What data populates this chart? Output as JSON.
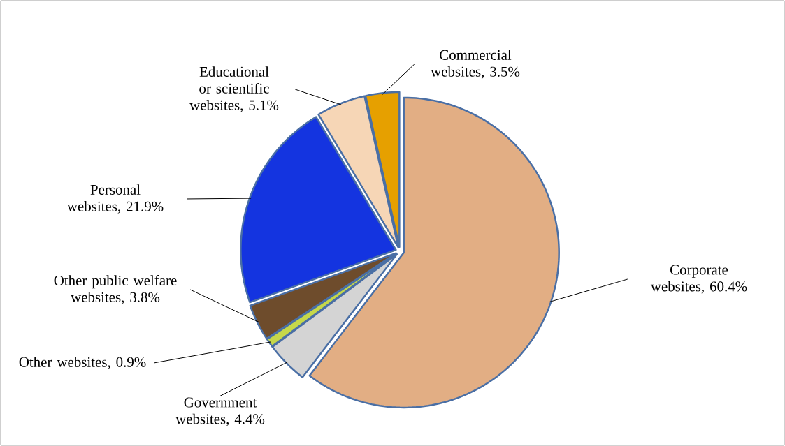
{
  "chart_data": {
    "type": "pie",
    "categories": [
      "Corporate websites, 60.4%",
      "Government websites, 4.4%",
      "Other websites, 0.9%",
      "Other public welfare websites, 3.8%",
      "Personal websites, 21.9%",
      "Educational or scientific websites, 5.1%",
      "Commercial websites, 3.5%"
    ],
    "values": [
      60.4,
      4.4,
      0.9,
      3.8,
      21.9,
      5.1,
      3.5
    ],
    "colors": [
      "#e2ae84",
      "#d4d4d4",
      "#c6d84a",
      "#6e4c2c",
      "#1434e0",
      "#f6d6b6",
      "#e6a000"
    ]
  }
}
